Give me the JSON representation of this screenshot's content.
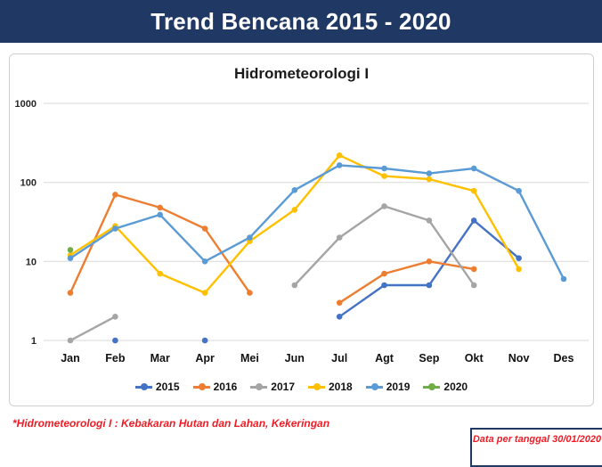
{
  "header": {
    "title": "Trend Bencana 2015 - 2020"
  },
  "chart_data": {
    "type": "line",
    "title": "Hidrometeorologi I",
    "y_scale": "log",
    "ylim": [
      1,
      1000
    ],
    "y_ticks": [
      1,
      10,
      100,
      1000
    ],
    "grid": true,
    "legend_position": "bottom",
    "categories": [
      "Jan",
      "Feb",
      "Mar",
      "Apr",
      "Mei",
      "Jun",
      "Jul",
      "Agt",
      "Sep",
      "Okt",
      "Nov",
      "Des"
    ],
    "series": [
      {
        "name": "2015",
        "color": "#4472C4",
        "values": [
          null,
          1,
          null,
          1,
          null,
          null,
          2,
          5,
          5,
          33,
          11,
          null
        ]
      },
      {
        "name": "2016",
        "color": "#ED7D31",
        "values": [
          4,
          70,
          48,
          26,
          4,
          null,
          3,
          7,
          10,
          8,
          null,
          null
        ]
      },
      {
        "name": "2017",
        "color": "#A5A5A5",
        "values": [
          1,
          2,
          null,
          null,
          null,
          5,
          20,
          50,
          33,
          5,
          null,
          null
        ]
      },
      {
        "name": "2018",
        "color": "#FFC000",
        "values": [
          12,
          28,
          7,
          4,
          18,
          45,
          220,
          120,
          110,
          78,
          8,
          null
        ]
      },
      {
        "name": "2019",
        "color": "#5B9BD5",
        "values": [
          11,
          26,
          39,
          10,
          20,
          80,
          165,
          150,
          130,
          150,
          78,
          6
        ]
      },
      {
        "name": "2020",
        "color": "#70AD47",
        "values": [
          14,
          null,
          null,
          null,
          null,
          null,
          null,
          null,
          null,
          null,
          null,
          null
        ]
      }
    ]
  },
  "footnote": {
    "text": "*Hidrometeorologi I : Kebakaran Hutan dan Lahan, Kekeringan"
  },
  "date_box": {
    "text": "Data per tanggal 30/01/2020"
  },
  "theme": {
    "header_bg": "#1F3864",
    "header_fg": "#FFFFFF",
    "note_red": "#EE1C25",
    "panel_border": "#D0CECE",
    "gridline": "#D9D9D9",
    "axis_text": "#262626"
  }
}
